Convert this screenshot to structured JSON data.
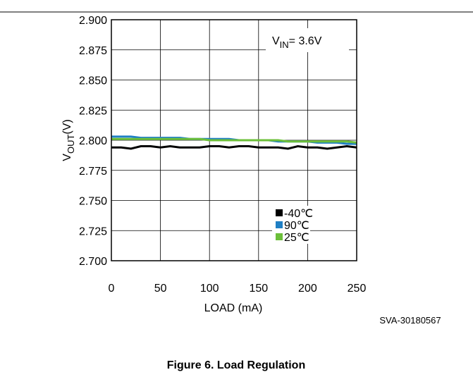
{
  "chart_data": {
    "type": "line",
    "x": [
      0,
      10,
      20,
      30,
      40,
      50,
      60,
      70,
      80,
      90,
      100,
      110,
      120,
      130,
      140,
      150,
      160,
      170,
      180,
      190,
      200,
      210,
      220,
      230,
      240,
      250
    ],
    "series": [
      {
        "name": "-40℃",
        "color": "#000000",
        "values": [
          2.794,
          2.794,
          2.793,
          2.795,
          2.795,
          2.794,
          2.795,
          2.794,
          2.794,
          2.794,
          2.795,
          2.795,
          2.794,
          2.795,
          2.795,
          2.794,
          2.794,
          2.794,
          2.793,
          2.795,
          2.794,
          2.794,
          2.793,
          2.794,
          2.795,
          2.794
        ]
      },
      {
        "name": "90℃",
        "color": "#1f7fc4",
        "values": [
          2.803,
          2.803,
          2.803,
          2.802,
          2.802,
          2.802,
          2.802,
          2.802,
          2.801,
          2.801,
          2.801,
          2.801,
          2.801,
          2.8,
          2.8,
          2.8,
          2.8,
          2.799,
          2.799,
          2.799,
          2.799,
          2.798,
          2.798,
          2.798,
          2.797,
          2.797
        ]
      },
      {
        "name": "25℃",
        "color": "#6cbf3a",
        "values": [
          2.801,
          2.801,
          2.801,
          2.801,
          2.801,
          2.801,
          2.801,
          2.801,
          2.801,
          2.801,
          2.8,
          2.8,
          2.8,
          2.8,
          2.8,
          2.8,
          2.8,
          2.8,
          2.799,
          2.799,
          2.799,
          2.799,
          2.799,
          2.799,
          2.799,
          2.798
        ]
      }
    ],
    "xlim": [
      0,
      250
    ],
    "xticks": [
      0,
      50,
      100,
      150,
      200,
      250
    ],
    "ylim": [
      2.7,
      2.9
    ],
    "yticks": [
      {
        "value": 2.7,
        "label": "2.700"
      },
      {
        "value": 2.725,
        "label": "2.725"
      },
      {
        "value": 2.75,
        "label": "2.750"
      },
      {
        "value": 2.775,
        "label": "2.775"
      },
      {
        "value": 2.8,
        "label": "2.800"
      },
      {
        "value": 2.825,
        "label": "2.825"
      },
      {
        "value": 2.85,
        "label": "2.850"
      },
      {
        "value": 2.875,
        "label": "2.875"
      },
      {
        "value": 2.9,
        "label": "2.900"
      }
    ],
    "grid": true,
    "xlabel": "LOAD (mA)",
    "ylabel": {
      "main": "V",
      "sub": "OUT",
      "rest": "(V)"
    },
    "annotation": {
      "main": "V",
      "sub": "IN",
      "rest": "= 3.6V"
    },
    "watermark": "SVA-30180567",
    "caption": "Figure 6. Load Regulation"
  }
}
